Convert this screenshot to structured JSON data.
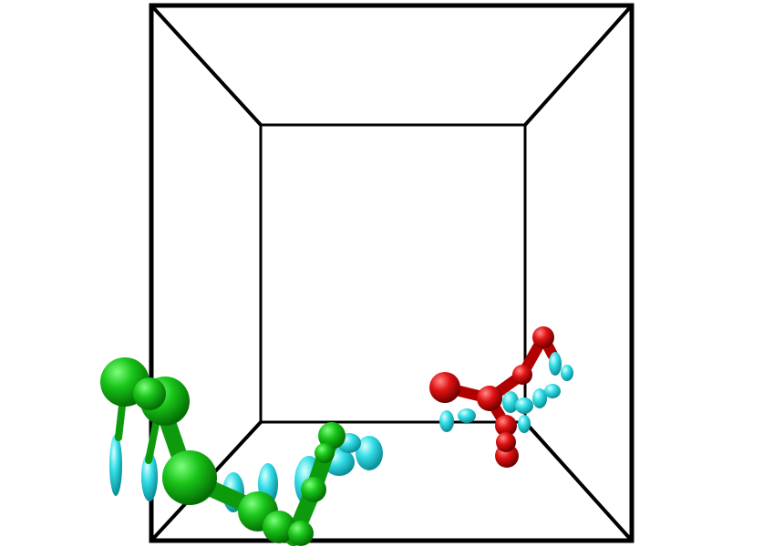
{
  "scene": {
    "background": "#ffffff",
    "box_color": "#000000",
    "molecules": [
      {
        "name": "green-chain",
        "atom_color": "#18c018",
        "bond_color": "#0fa80f",
        "satellite_color": "#33dde6"
      },
      {
        "name": "red-chain",
        "atom_color": "#e01414",
        "bond_color": "#c00000",
        "satellite_color": "#33dde6"
      }
    ]
  }
}
